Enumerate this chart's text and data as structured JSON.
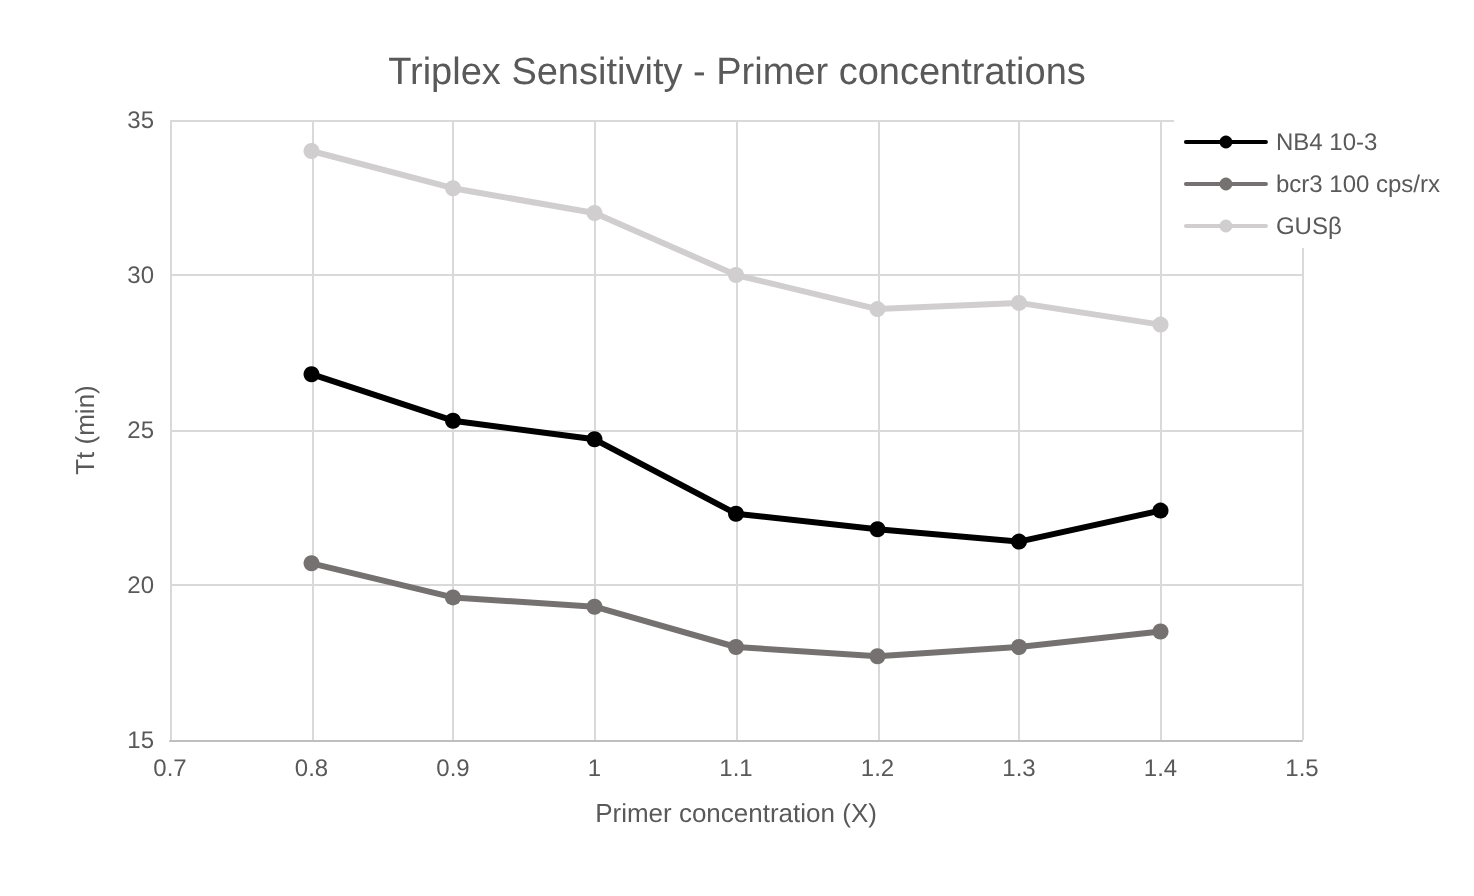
{
  "chart_data": {
    "type": "line",
    "title": "Triplex Sensitivity - Primer concentrations",
    "xlabel": "Primer concentration (X)",
    "ylabel": "Tt (min)",
    "x": [
      0.8,
      0.9,
      1,
      1.1,
      1.2,
      1.3,
      1.4
    ],
    "series": [
      {
        "name": "NB4 10-3",
        "color": "#000000",
        "values": [
          26.8,
          25.3,
          24.7,
          22.3,
          21.8,
          21.4,
          22.4
        ]
      },
      {
        "name": "bcr3 100 cps/rx",
        "color": "#767171",
        "values": [
          20.7,
          19.6,
          19.3,
          18.0,
          17.7,
          18.0,
          18.5
        ]
      },
      {
        "name": "GUSβ",
        "color": "#d0cece",
        "values": [
          34.0,
          32.8,
          32.0,
          30.0,
          28.9,
          29.1,
          28.4
        ]
      }
    ],
    "xlim": [
      0.7,
      1.5
    ],
    "xticks": [
      0.7,
      0.8,
      0.9,
      1,
      1.1,
      1.2,
      1.3,
      1.4,
      1.5
    ],
    "ylim": [
      15,
      35
    ],
    "yticks": [
      15,
      20,
      25,
      30,
      35
    ],
    "grid": true,
    "legend": "top right",
    "marker": "circle",
    "line_style": "solid"
  }
}
